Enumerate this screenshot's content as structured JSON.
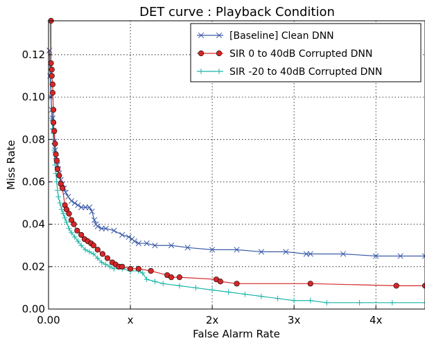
{
  "chart_data": {
    "type": "line",
    "title": "DET curve : Playback Condition",
    "xlabel": "False Alarm Rate",
    "ylabel": "Miss Rate",
    "xlim": [
      0,
      4.6
    ],
    "ylim": [
      0,
      0.136
    ],
    "grid": true,
    "legend_position": "top-right",
    "x_ticks": [
      {
        "value": 0,
        "label": "0.00"
      },
      {
        "value": 1,
        "label": "x"
      },
      {
        "value": 2,
        "label": "2x"
      },
      {
        "value": 3,
        "label": "3x"
      },
      {
        "value": 4,
        "label": "4x"
      }
    ],
    "y_ticks": [
      {
        "value": 0.0,
        "label": "0.00"
      },
      {
        "value": 0.02,
        "label": "0.02"
      },
      {
        "value": 0.04,
        "label": "0.04"
      },
      {
        "value": 0.06,
        "label": "0.06"
      },
      {
        "value": 0.08,
        "label": "0.08"
      },
      {
        "value": 0.1,
        "label": "0.10"
      },
      {
        "value": 0.12,
        "label": "0.12"
      }
    ],
    "series": [
      {
        "name": "[Baseline] Clean DNN",
        "color": "#3a5aa8",
        "marker": "x",
        "x": [
          0.01,
          0.02,
          0.03,
          0.04,
          0.05,
          0.06,
          0.07,
          0.08,
          0.09,
          0.1,
          0.11,
          0.12,
          0.13,
          0.15,
          0.17,
          0.19,
          0.21,
          0.24,
          0.28,
          0.32,
          0.36,
          0.4,
          0.45,
          0.5,
          0.53,
          0.56,
          0.58,
          0.6,
          0.65,
          0.7,
          0.8,
          0.9,
          0.98,
          1.02,
          1.05,
          1.1,
          1.2,
          1.3,
          1.5,
          1.7,
          2.0,
          2.3,
          2.6,
          2.9,
          3.15,
          3.2,
          3.6,
          4.0,
          4.3,
          4.6
        ],
        "y": [
          0.122,
          0.11,
          0.1,
          0.094,
          0.09,
          0.084,
          0.079,
          0.075,
          0.072,
          0.07,
          0.068,
          0.066,
          0.064,
          0.061,
          0.059,
          0.057,
          0.055,
          0.053,
          0.051,
          0.05,
          0.049,
          0.048,
          0.048,
          0.048,
          0.046,
          0.042,
          0.04,
          0.039,
          0.038,
          0.038,
          0.037,
          0.035,
          0.034,
          0.033,
          0.032,
          0.031,
          0.031,
          0.03,
          0.03,
          0.029,
          0.028,
          0.028,
          0.027,
          0.027,
          0.026,
          0.026,
          0.026,
          0.025,
          0.025,
          0.025
        ]
      },
      {
        "name": "SIR 0 to 40dB Corrupted DNN",
        "color": "#d62728",
        "marker": "circle",
        "x": [
          0.03,
          0.03,
          0.04,
          0.04,
          0.05,
          0.05,
          0.06,
          0.06,
          0.07,
          0.08,
          0.09,
          0.1,
          0.11,
          0.13,
          0.15,
          0.17,
          0.2,
          0.22,
          0.25,
          0.28,
          0.31,
          0.35,
          0.4,
          0.44,
          0.48,
          0.52,
          0.55,
          0.6,
          0.66,
          0.72,
          0.78,
          0.82,
          0.86,
          0.9,
          1.0,
          1.1,
          1.25,
          1.45,
          1.5,
          1.6,
          2.05,
          2.1,
          2.3,
          3.2,
          4.25,
          4.6
        ],
        "y": [
          0.136,
          0.116,
          0.113,
          0.11,
          0.106,
          0.102,
          0.094,
          0.088,
          0.084,
          0.078,
          0.073,
          0.07,
          0.066,
          0.063,
          0.059,
          0.057,
          0.049,
          0.047,
          0.045,
          0.042,
          0.04,
          0.037,
          0.035,
          0.033,
          0.032,
          0.031,
          0.03,
          0.028,
          0.026,
          0.024,
          0.022,
          0.021,
          0.02,
          0.02,
          0.019,
          0.019,
          0.018,
          0.016,
          0.015,
          0.015,
          0.014,
          0.013,
          0.012,
          0.012,
          0.011,
          0.011
        ]
      },
      {
        "name": "SIR -20 to 40dB Corrupted DNN",
        "color": "#1ab5a8",
        "marker": "plus",
        "x": [
          0.02,
          0.03,
          0.04,
          0.05,
          0.06,
          0.07,
          0.08,
          0.09,
          0.1,
          0.11,
          0.12,
          0.14,
          0.16,
          0.18,
          0.2,
          0.22,
          0.25,
          0.28,
          0.32,
          0.36,
          0.4,
          0.45,
          0.5,
          0.55,
          0.6,
          0.65,
          0.7,
          0.75,
          0.8,
          0.9,
          1.0,
          1.1,
          1.15,
          1.2,
          1.3,
          1.4,
          1.6,
          1.8,
          2.0,
          2.2,
          2.4,
          2.6,
          2.8,
          3.0,
          3.2,
          3.4,
          3.8,
          4.2,
          4.6
        ],
        "y": [
          0.136,
          0.1,
          0.09,
          0.085,
          0.08,
          0.075,
          0.068,
          0.064,
          0.06,
          0.056,
          0.053,
          0.05,
          0.047,
          0.045,
          0.043,
          0.041,
          0.038,
          0.036,
          0.034,
          0.032,
          0.03,
          0.028,
          0.027,
          0.026,
          0.024,
          0.022,
          0.021,
          0.02,
          0.019,
          0.019,
          0.018,
          0.018,
          0.017,
          0.014,
          0.013,
          0.012,
          0.011,
          0.01,
          0.009,
          0.008,
          0.007,
          0.006,
          0.005,
          0.004,
          0.004,
          0.003,
          0.003,
          0.003,
          0.003
        ]
      }
    ]
  }
}
